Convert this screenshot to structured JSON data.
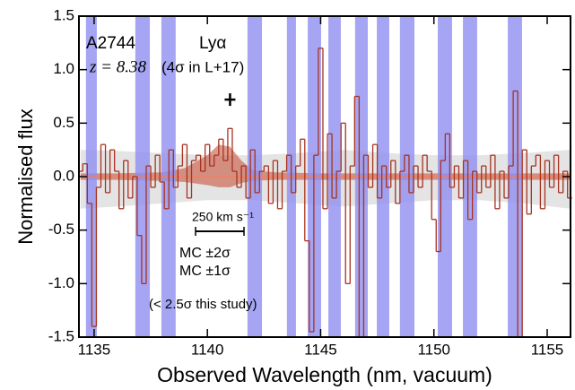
{
  "chart_data": {
    "type": "step",
    "xlabel": "Observed Wavelength (nm, vacuum)",
    "ylabel": "Normalised flux",
    "xlim": [
      1134.33,
      1156.03
    ],
    "ylim": [
      -1.5,
      1.5
    ],
    "xticks": [
      1135,
      1140,
      1145,
      1150,
      1155
    ],
    "yticks": [
      1.5,
      {
        "value": 1.0,
        "label": "1.0"
      },
      0.5,
      {
        "value": 0.0,
        "label": "0.0"
      },
      -0.5,
      {
        "value": -1.0,
        "label": "-1.0"
      },
      -1.5
    ],
    "color": "#a8321f",
    "x": [
      1134.4,
      1134.6,
      1134.8,
      1135.0,
      1135.2,
      1135.4,
      1135.6,
      1135.8,
      1136.0,
      1136.2,
      1136.4,
      1136.6,
      1136.8,
      1137.0,
      1137.2,
      1137.4,
      1137.6,
      1137.8,
      1138.0,
      1138.2,
      1138.4,
      1138.6,
      1138.8,
      1139.0,
      1139.2,
      1139.4,
      1139.6,
      1139.8,
      1140.0,
      1140.2,
      1140.4,
      1140.6,
      1140.8,
      1141.0,
      1141.2,
      1141.4,
      1141.6,
      1141.8,
      1142.0,
      1142.2,
      1142.4,
      1142.6,
      1142.8,
      1143.0,
      1143.2,
      1143.4,
      1143.6,
      1143.8,
      1144.0,
      1144.2,
      1144.4,
      1144.6,
      1144.8,
      1145.0,
      1145.2,
      1145.4,
      1145.6,
      1145.8,
      1146.0,
      1146.2,
      1146.4,
      1146.6,
      1146.8,
      1147.0,
      1147.2,
      1147.4,
      1147.6,
      1147.8,
      1148.0,
      1148.2,
      1148.4,
      1148.6,
      1148.8,
      1149.0,
      1149.2,
      1149.4,
      1149.6,
      1149.8,
      1150.0,
      1150.2,
      1150.4,
      1150.6,
      1150.8,
      1151.0,
      1151.2,
      1151.4,
      1151.6,
      1151.8,
      1152.0,
      1152.2,
      1152.4,
      1152.6,
      1152.8,
      1153.0,
      1153.2,
      1153.4,
      1153.6,
      1153.8,
      1154.0,
      1154.2,
      1154.4,
      1154.6,
      1154.8,
      1155.0,
      1155.2,
      1155.4,
      1155.6,
      1155.8,
      1156.0
    ],
    "values": [
      0.05,
      0.12,
      -0.25,
      -1.4,
      -0.1,
      0.3,
      -0.15,
      0.25,
      0.05,
      -0.3,
      0.15,
      -0.2,
      0.0,
      -0.55,
      -1.0,
      0.1,
      -0.1,
      0.2,
      -0.05,
      -0.3,
      0.25,
      -0.1,
      0.1,
      0.3,
      -0.2,
      0.15,
      0.2,
      0.05,
      0.3,
      0.1,
      0.2,
      0.35,
      0.15,
      0.45,
      0.05,
      -0.1,
      0.1,
      -0.2,
      0.25,
      -0.15,
      0.05,
      0.1,
      -0.25,
      0.15,
      -0.3,
      0.05,
      0.2,
      -0.15,
      0.1,
      0.35,
      -0.6,
      -1.45,
      0.2,
      1.2,
      -0.3,
      0.4,
      -0.2,
      0.05,
      0.5,
      -1.0,
      0.1,
      0.75,
      -1.5,
      0.2,
      -0.1,
      0.3,
      -0.2,
      0.1,
      -0.1,
      0.15,
      -0.25,
      0.05,
      0.2,
      -0.15,
      0.1,
      -0.1,
      0.2,
      0.05,
      -0.4,
      -0.7,
      0.15,
      0.4,
      -0.1,
      0.1,
      -0.2,
      0.15,
      -0.4,
      0.05,
      -0.15,
      0.1,
      -0.1,
      0.2,
      -0.3,
      0.05,
      -0.2,
      0.1,
      0.8,
      -1.5,
      0.25,
      -0.35,
      0.1,
      0.2,
      -0.3,
      0.15,
      -0.1,
      0.2,
      -0.15,
      0.05,
      -0.2
    ],
    "sky_masks": [
      [
        1134.64,
        1135.12
      ],
      [
        1136.82,
        1137.46
      ],
      [
        1137.97,
        1138.6
      ],
      [
        1141.77,
        1142.41
      ],
      [
        1143.51,
        1143.91
      ],
      [
        1144.43,
        1145.02
      ],
      [
        1145.34,
        1145.89
      ],
      [
        1146.52,
        1147.08
      ],
      [
        1147.48,
        1148.03
      ],
      [
        1148.5,
        1149.14
      ],
      [
        1150.17,
        1150.8
      ],
      [
        1151.28,
        1151.91
      ],
      [
        1153.26,
        1153.89
      ]
    ],
    "sky_mask_color": "#8f8ff0",
    "mc_2sigma": {
      "name": "MC ±2σ",
      "color": "#d9d9d9",
      "label_color": "#e8a088",
      "x": [
        1134.4,
        1136,
        1138,
        1140,
        1142,
        1144,
        1146,
        1148,
        1150,
        1152,
        1154,
        1156
      ],
      "upper": [
        0.25,
        0.24,
        0.22,
        0.2,
        0.2,
        0.22,
        0.25,
        0.22,
        0.2,
        0.2,
        0.22,
        0.25
      ],
      "lower": [
        -0.3,
        -0.28,
        -0.25,
        -0.22,
        -0.22,
        -0.25,
        -0.28,
        -0.25,
        -0.22,
        -0.22,
        -0.25,
        -0.3
      ]
    },
    "mc_1sigma": {
      "name": "MC ±1σ",
      "color": "#c8553d",
      "label_color": "#b8452e",
      "x": [
        1134.4,
        1136,
        1138,
        1139,
        1140,
        1140.5,
        1141,
        1141.5,
        1142,
        1143,
        1145,
        1148,
        1152,
        1156
      ],
      "upper": [
        0.03,
        0.03,
        0.04,
        0.08,
        0.2,
        0.3,
        0.28,
        0.15,
        0.06,
        0.04,
        0.03,
        0.03,
        0.03,
        0.03
      ],
      "lower": [
        -0.03,
        -0.03,
        -0.04,
        -0.05,
        -0.08,
        -0.1,
        -0.1,
        -0.06,
        -0.04,
        -0.03,
        -0.03,
        -0.03,
        -0.03,
        -0.03
      ]
    },
    "marker": {
      "x": 1141.0,
      "y": 0.72
    },
    "annotations": {
      "field": "A2744",
      "redshift": "z = 8.38",
      "previous": "(4σ in L+17)",
      "line": "Lyα",
      "scale": "250 km s⁻¹",
      "result": "(< 2.5σ this study)"
    }
  }
}
